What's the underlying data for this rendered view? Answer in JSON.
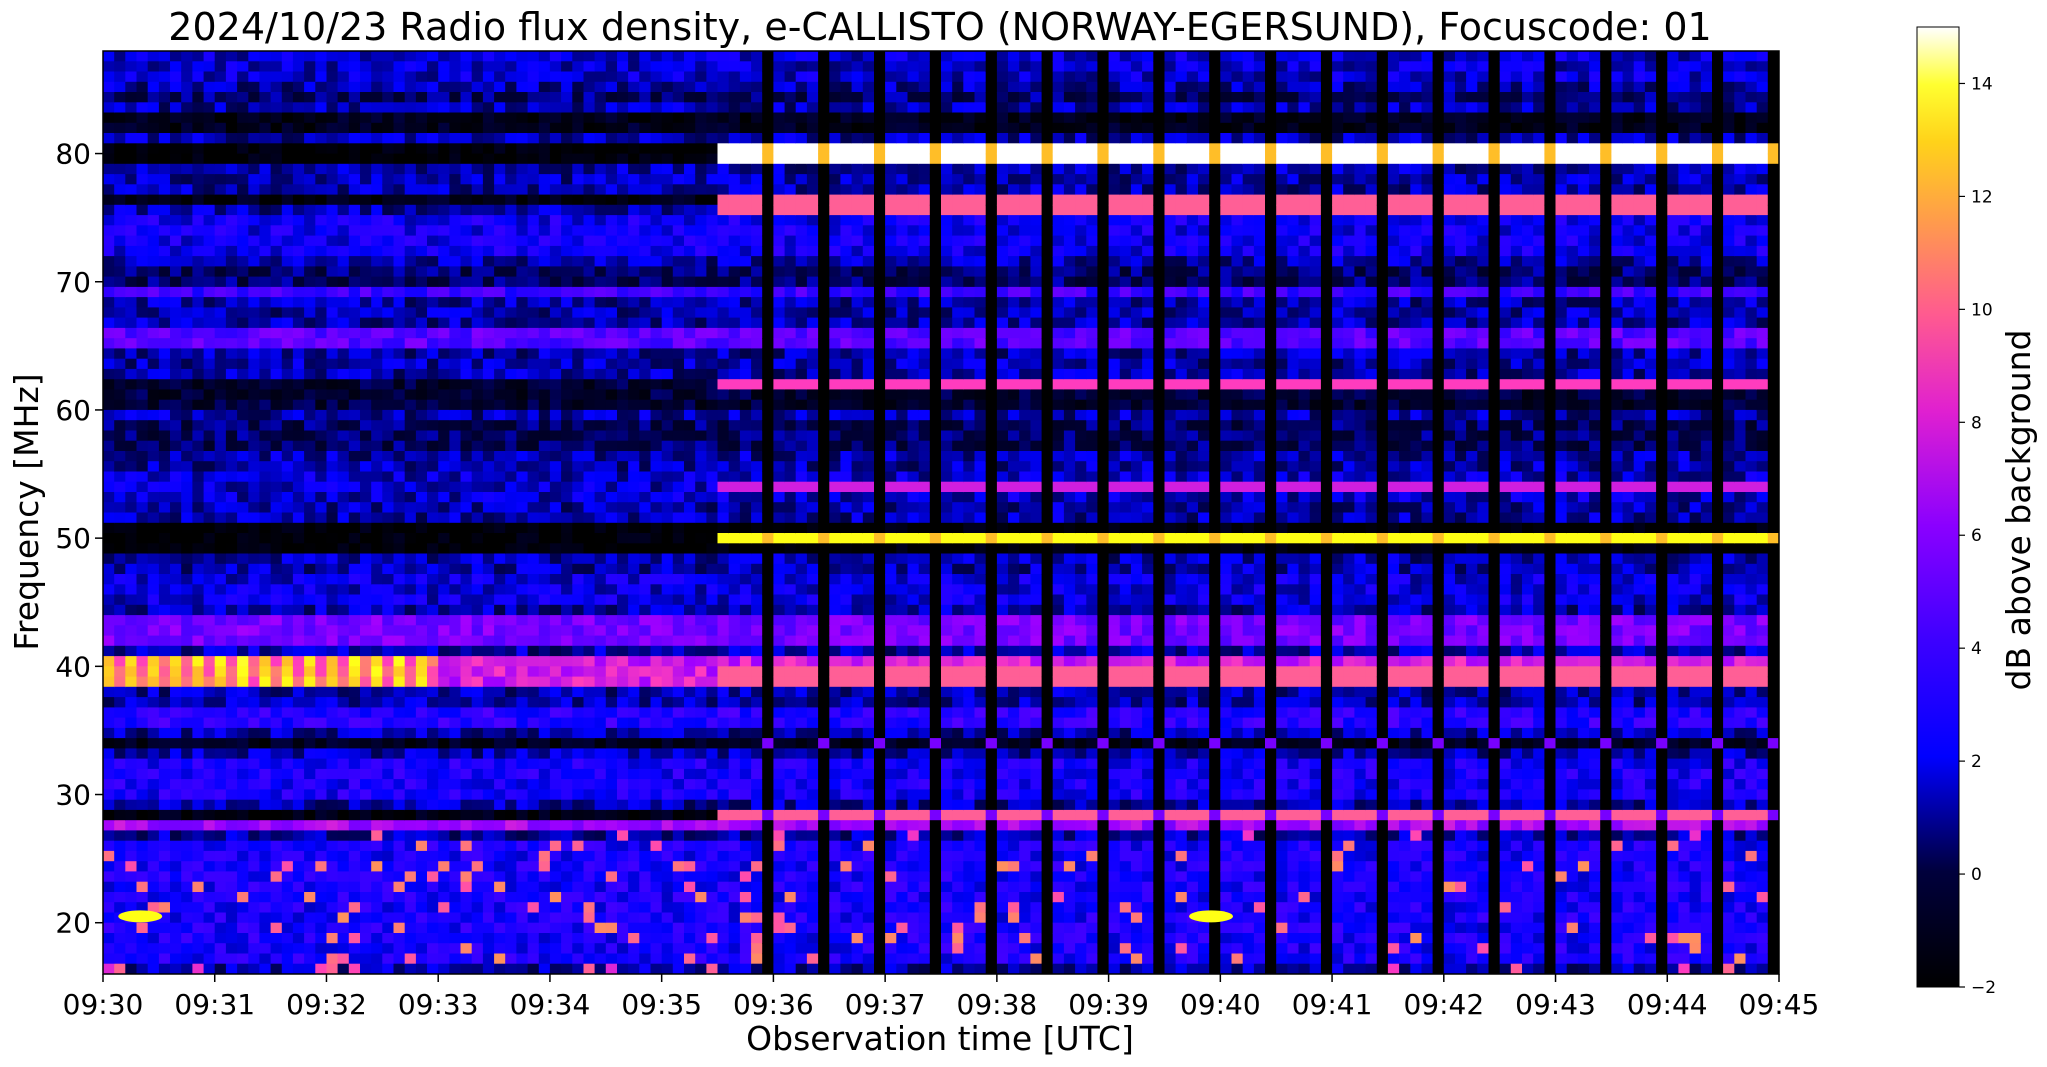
{
  "chart_data": {
    "type": "heatmap",
    "title": "2024/10/23  Radio flux density, e-CALLISTO (NORWAY-EGERSUND), Focuscode: 01",
    "xlabel": "Observation time [UTC]",
    "ylabel": "Frequency [MHz]",
    "x_ticks": [
      "09:30",
      "09:31",
      "09:32",
      "09:33",
      "09:34",
      "09:35",
      "09:36",
      "09:37",
      "09:38",
      "09:39",
      "09:40",
      "09:41",
      "09:42",
      "09:43",
      "09:44",
      "09:45"
    ],
    "y_ticks": [
      20,
      30,
      40,
      50,
      60,
      70,
      80
    ],
    "xlim": [
      "09:30",
      "09:45"
    ],
    "ylim": [
      16,
      88
    ],
    "colorbar": {
      "label": "dB above background",
      "ticks": [
        -2,
        0,
        2,
        4,
        6,
        8,
        10,
        12,
        14
      ],
      "range": [
        -2,
        15
      ],
      "colormap": "gnuplot2",
      "colors": [
        "#000000",
        "#0000ff",
        "#7a00ff",
        "#ff3fbf",
        "#ffa040",
        "#ffff00",
        "#ffffff"
      ]
    },
    "regime_change_time": "09:35:30",
    "interference_bands_mhz": [
      80,
      76,
      70,
      65,
      62,
      54,
      50,
      39,
      34,
      28.5
    ],
    "strongest_features": [
      {
        "time": "09:30:20",
        "freq_mhz": 20.5,
        "db": 14
      },
      {
        "time": "09:39:55",
        "freq_mhz": 20.5,
        "db": 14
      },
      {
        "time": "09:36-09:45",
        "freq_mhz": 50,
        "db": 14
      },
      {
        "time": "09:36-09:45",
        "freq_mhz": 80,
        "db": 15
      }
    ]
  }
}
